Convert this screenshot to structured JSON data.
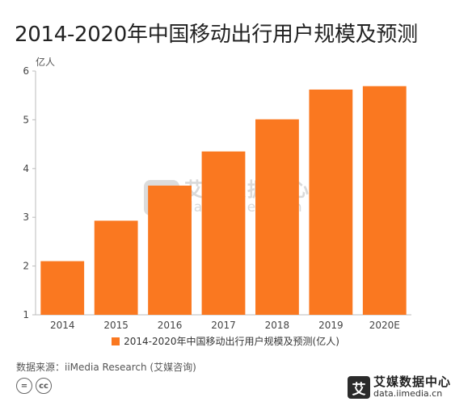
{
  "title": "2014-2020年中国移动出行用户规模及预测",
  "source": "数据来源：iiMedia Research (艾媒咨询)",
  "logo": {
    "mark": "艾",
    "name": "艾媒数据中心",
    "url": "data.iimedia.cn"
  },
  "watermark": {
    "mark": "艾",
    "name": "艾媒数据中心",
    "url": "data.iimedia.cn"
  },
  "license_icons": [
    "=",
    "cc"
  ],
  "colors": {
    "bar": "#fa7820",
    "axis": "#bbbbbb",
    "grid": "#e6e6e6"
  },
  "chart_data": {
    "type": "bar",
    "title": "2014-2020年中国移动出行用户规模及预测",
    "ylabel": "亿人",
    "xlabel": "",
    "categories": [
      "2014",
      "2015",
      "2016",
      "2017",
      "2018",
      "2019",
      "2020E"
    ],
    "series": [
      {
        "name": "2014-2020年中国移动出行用户规模及预测(亿人)",
        "values": [
          2.1,
          2.93,
          3.65,
          4.35,
          5.01,
          5.62,
          5.69
        ]
      }
    ],
    "ylim": [
      1,
      6
    ],
    "yticks": [
      1,
      2,
      3,
      4,
      5,
      6
    ],
    "grid": false,
    "legend": "bottom"
  }
}
